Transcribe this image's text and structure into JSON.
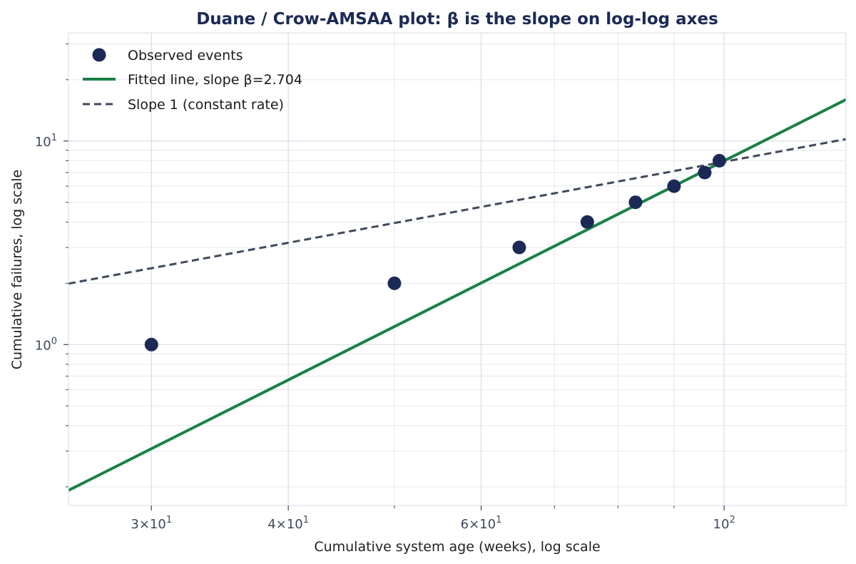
{
  "chart_data": {
    "type": "scatter",
    "title": "Duane / Crow-AMSAA plot: β is the slope on log-log axes",
    "xlabel": "Cumulative system age (weeks), log scale",
    "ylabel": "Cumulative failures, log scale",
    "x_scale": "log",
    "y_scale": "log",
    "xlim": [
      25.2,
      129.2
    ],
    "ylim": [
      0.162,
      34.0
    ],
    "x_ticks": [
      {
        "value": 30,
        "mantissa": "3",
        "exponent": "1"
      },
      {
        "value": 40,
        "mantissa": "4",
        "exponent": "1"
      },
      {
        "value": 60,
        "mantissa": "6",
        "exponent": "1"
      },
      {
        "value": 100,
        "mantissa": "",
        "exponent": "2"
      }
    ],
    "x_minor_ticks": [
      50,
      70,
      80,
      90
    ],
    "y_ticks": [
      {
        "value": 1,
        "exponent": "0"
      },
      {
        "value": 10,
        "exponent": "1"
      }
    ],
    "y_minor_ticks": [
      0.2,
      0.3,
      0.4,
      0.5,
      0.6,
      0.7,
      0.8,
      0.9,
      2,
      3,
      4,
      5,
      6,
      7,
      8,
      9,
      20,
      30
    ],
    "grid": true,
    "legend_position": "top-left",
    "series": [
      {
        "name": "Observed events",
        "kind": "markers",
        "color": "#1b2a55",
        "x": [
          30,
          50,
          65,
          75,
          83,
          90,
          96,
          99
        ],
        "y": [
          1,
          2,
          3,
          4,
          5,
          6,
          7,
          8
        ]
      },
      {
        "name": "Fitted line, slope β=2.704",
        "kind": "line",
        "color": "#1a8046",
        "slope": 2.704,
        "anchor": {
          "x": 99.4,
          "y": 7.86
        }
      },
      {
        "name": "Slope 1 (constant rate)",
        "kind": "dashed-line",
        "color": "#3f4a5c",
        "slope": 1,
        "anchor": {
          "x": 99.4,
          "y": 7.86
        }
      }
    ]
  }
}
